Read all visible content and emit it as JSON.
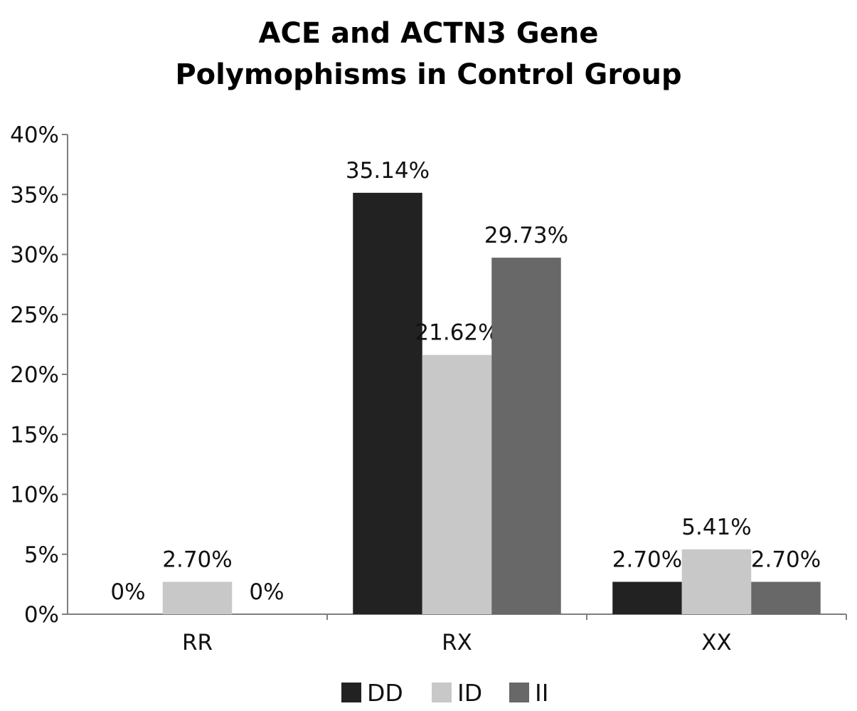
{
  "chart_data": {
    "type": "bar",
    "title_lines": [
      "ACE and ACTN3 Gene",
      "Polymophisms in Control Group"
    ],
    "categories": [
      "RR",
      "RX",
      "XX"
    ],
    "series": [
      {
        "name": "DD",
        "color": "#222222",
        "values": [
          0,
          35.14,
          2.7
        ],
        "labels": [
          "0%",
          "35.14%",
          "2.70%"
        ]
      },
      {
        "name": "ID",
        "color": "#c8c8c8",
        "values": [
          2.7,
          21.62,
          5.41
        ],
        "labels": [
          "2.70%",
          "21.62%",
          "5.41%"
        ]
      },
      {
        "name": "II",
        "color": "#686868",
        "values": [
          0,
          29.73,
          2.7
        ],
        "labels": [
          "0%",
          "29.73%",
          "2.70%"
        ]
      }
    ],
    "yticks": [
      "0%",
      "5%",
      "10%",
      "15%",
      "20%",
      "25%",
      "30%",
      "35%",
      "40%"
    ],
    "ylim": [
      0,
      40
    ],
    "grid": false,
    "legend_position": "bottom"
  }
}
